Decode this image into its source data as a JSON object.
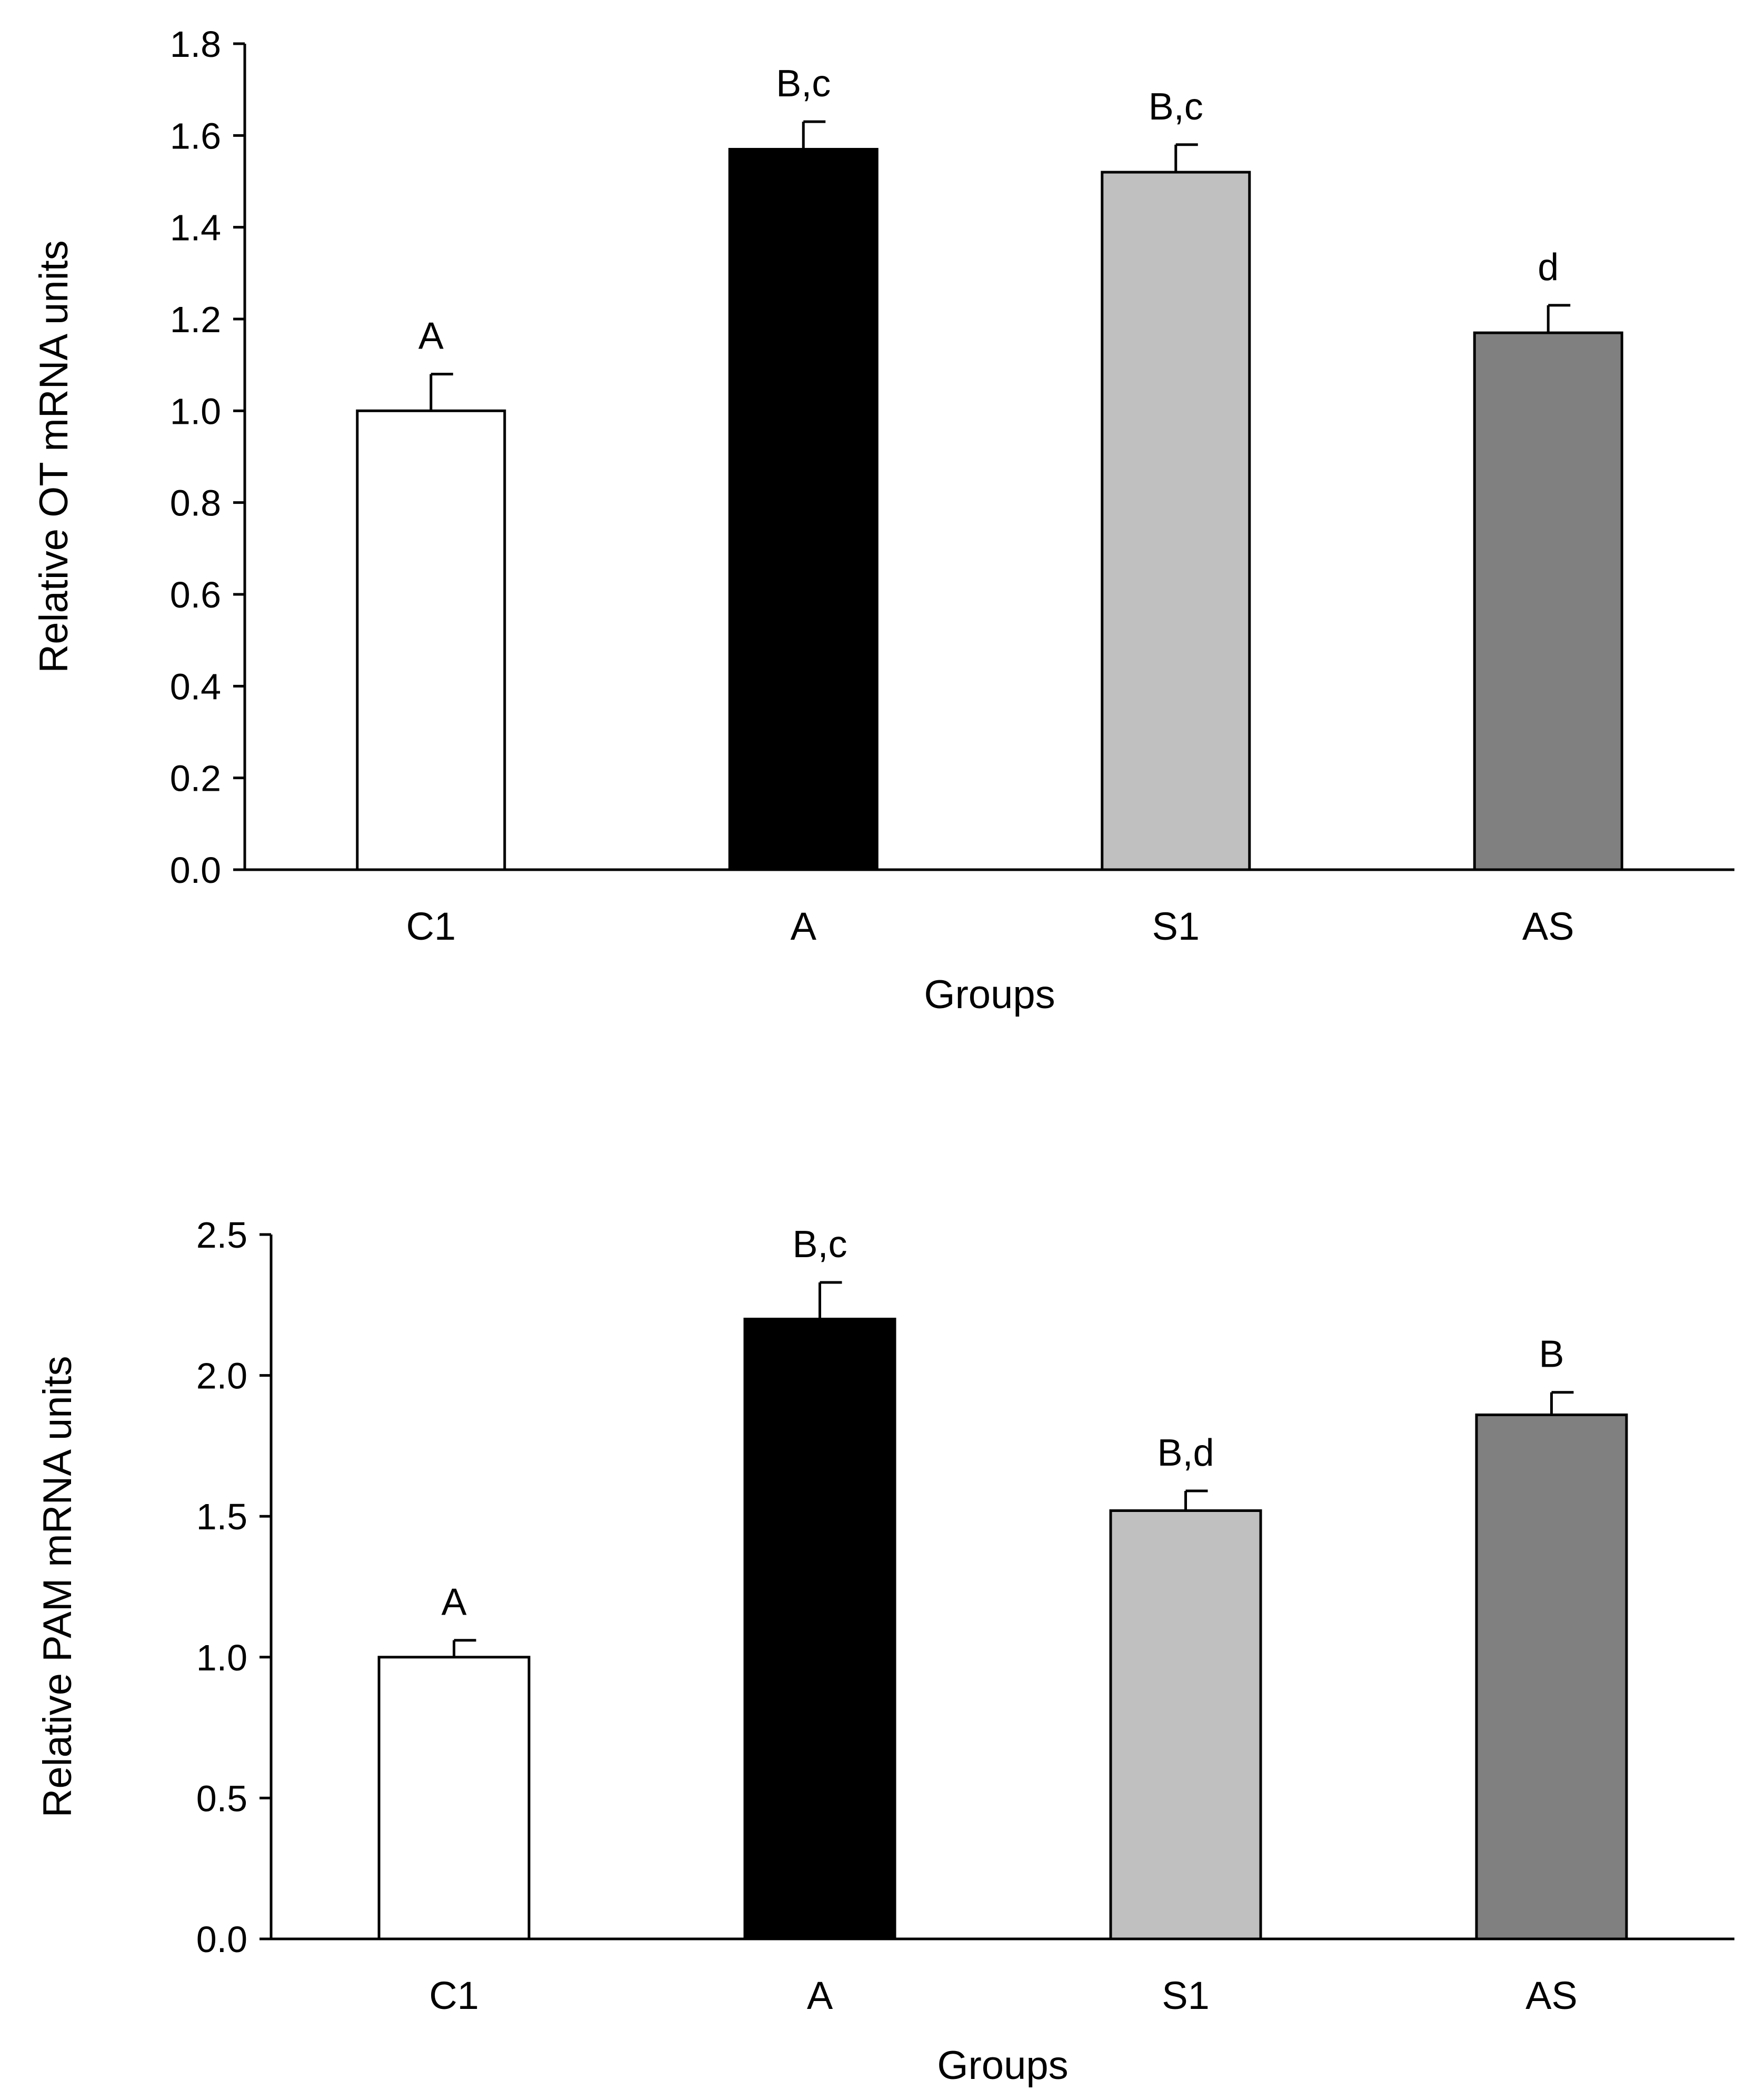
{
  "chart_data": [
    {
      "type": "bar",
      "title": "",
      "xlabel": "Groups",
      "ylabel": "Relative OT mRNA units",
      "ylim": [
        0,
        1.8
      ],
      "yticks": [
        "0.0",
        "0.2",
        "0.4",
        "0.6",
        "0.8",
        "1.0",
        "1.2",
        "1.4",
        "1.6",
        "1.8"
      ],
      "categories": [
        "C1",
        "A",
        "S1",
        "AS"
      ],
      "values": [
        1.0,
        1.57,
        1.52,
        1.17
      ],
      "errors": [
        0.08,
        0.06,
        0.06,
        0.06
      ],
      "annotations": [
        "A",
        "B,c",
        "B,c",
        "d"
      ],
      "colors": [
        "#ffffff",
        "#000000",
        "#c0c0c0",
        "#808080"
      ],
      "grid": false,
      "legend": "none"
    },
    {
      "type": "bar",
      "title": "",
      "xlabel": "Groups",
      "ylabel": "Relative PAM mRNA units",
      "ylim": [
        0,
        2.5
      ],
      "yticks": [
        "0.0",
        "0.5",
        "1.0",
        "1.5",
        "2.0",
        "2.5"
      ],
      "categories": [
        "C1",
        "A",
        "S1",
        "AS"
      ],
      "values": [
        1.0,
        2.2,
        1.52,
        1.86
      ],
      "errors": [
        0.06,
        0.13,
        0.07,
        0.08
      ],
      "annotations": [
        "A",
        "B,c",
        "B,d",
        "B"
      ],
      "colors": [
        "#ffffff",
        "#000000",
        "#c0c0c0",
        "#808080"
      ],
      "grid": false,
      "legend": "none"
    }
  ]
}
